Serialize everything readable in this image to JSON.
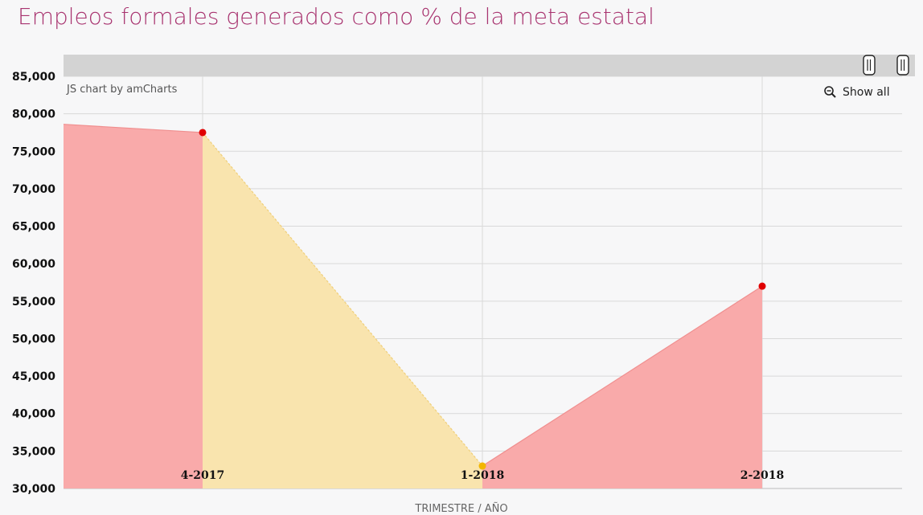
{
  "header": {
    "title": "Empleos formales generados como % de la meta estatal"
  },
  "credit": "JS chart by amCharts",
  "zoom": {
    "show_all_label": "Show all"
  },
  "colors": {
    "below": "#f9aaaa",
    "above": "#f9e4ae",
    "marker_red": "#e00000",
    "marker_yellow": "#f2b600",
    "scrollbar": "#d3d3d3",
    "grid": "#d9d9d9"
  },
  "chart_data": {
    "type": "area",
    "title": "Empleos formales generados como % de la meta estatal",
    "xlabel": "TRIMESTRE / AÑO",
    "ylabel": "",
    "categories": [
      "4-2017",
      "1-2018",
      "2-2018"
    ],
    "series": [
      {
        "values": [
          77500,
          33000,
          57000
        ]
      }
    ],
    "left_edge_value": 78600,
    "segment_colors": [
      "below",
      "above",
      "below"
    ],
    "marker_colors": [
      "marker_red",
      "marker_yellow",
      "marker_red"
    ],
    "ylim": [
      30000,
      85000
    ],
    "yticks": [
      "30,000",
      "35,000",
      "40,000",
      "45,000",
      "50,000",
      "55,000",
      "60,000",
      "65,000",
      "70,000",
      "75,000",
      "80,000",
      "85,000"
    ],
    "grid": true
  }
}
